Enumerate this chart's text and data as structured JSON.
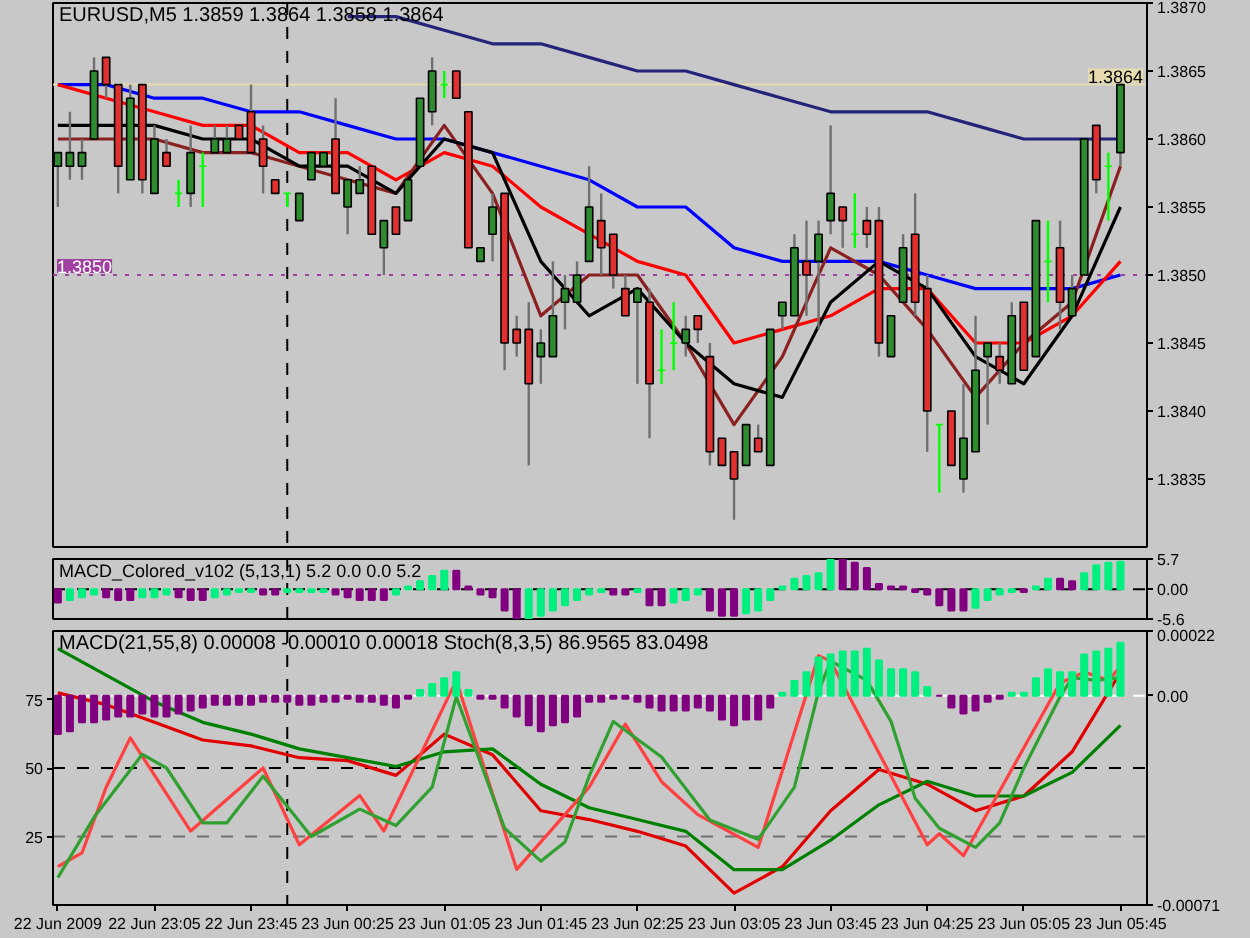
{
  "chart_data": [
    {
      "type": "candlestick",
      "title": "EURUSD,M5  1.3859 1.3864 1.3858 1.3864",
      "x": [
        "2009-06-22T22:25",
        "2009-06-22T22:30",
        "2009-06-22T22:35",
        "2009-06-22T22:40",
        "2009-06-22T22:45",
        "2009-06-22T22:50",
        "2009-06-22T22:55",
        "2009-06-22T23:00",
        "2009-06-22T23:05",
        "2009-06-22T23:10",
        "2009-06-22T23:15",
        "2009-06-22T23:20",
        "2009-06-22T23:25",
        "2009-06-22T23:30",
        "2009-06-22T23:35",
        "2009-06-22T23:40",
        "2009-06-22T23:45",
        "2009-06-22T23:50",
        "2009-06-22T23:55",
        "2009-06-23T00:00",
        "2009-06-23T00:05",
        "2009-06-23T00:10",
        "2009-06-23T00:15",
        "2009-06-23T00:20",
        "2009-06-23T00:25",
        "2009-06-23T00:30",
        "2009-06-23T00:35",
        "2009-06-23T00:40",
        "2009-06-23T00:45",
        "2009-06-23T00:50",
        "2009-06-23T00:55",
        "2009-06-23T01:00",
        "2009-06-23T01:05",
        "2009-06-23T01:10",
        "2009-06-23T01:15",
        "2009-06-23T01:20",
        "2009-06-23T01:25",
        "2009-06-23T01:30",
        "2009-06-23T01:35",
        "2009-06-23T01:40",
        "2009-06-23T01:45",
        "2009-06-23T01:50",
        "2009-06-23T01:55",
        "2009-06-23T02:00",
        "2009-06-23T02:05",
        "2009-06-23T02:10",
        "2009-06-23T02:15",
        "2009-06-23T02:20",
        "2009-06-23T02:25",
        "2009-06-23T02:30",
        "2009-06-23T02:35",
        "2009-06-23T02:40",
        "2009-06-23T02:45",
        "2009-06-23T02:50",
        "2009-06-23T02:55",
        "2009-06-23T03:00",
        "2009-06-23T03:05",
        "2009-06-23T03:10",
        "2009-06-23T03:15",
        "2009-06-23T03:20",
        "2009-06-23T03:25",
        "2009-06-23T03:30",
        "2009-06-23T03:35",
        "2009-06-23T03:40",
        "2009-06-23T03:45",
        "2009-06-23T03:50",
        "2009-06-23T03:55",
        "2009-06-23T04:00",
        "2009-06-23T04:05",
        "2009-06-23T04:10",
        "2009-06-23T04:15",
        "2009-06-23T04:20",
        "2009-06-23T04:25",
        "2009-06-23T04:30",
        "2009-06-23T04:35",
        "2009-06-23T04:40",
        "2009-06-23T04:45",
        "2009-06-23T04:50",
        "2009-06-23T04:55",
        "2009-06-23T05:00",
        "2009-06-23T05:05",
        "2009-06-23T05:10",
        "2009-06-23T05:15",
        "2009-06-23T05:20",
        "2009-06-23T05:25",
        "2009-06-23T05:30",
        "2009-06-23T05:35",
        "2009-06-23T05:40",
        "2009-06-23T05:45"
      ],
      "ohlc": [
        [
          1.3858,
          1.3859,
          1.3855,
          1.3859
        ],
        [
          1.3858,
          1.3862,
          1.3857,
          1.3859
        ],
        [
          1.3858,
          1.386,
          1.3857,
          1.3859
        ],
        [
          1.386,
          1.3866,
          1.386,
          1.3865
        ],
        [
          1.3866,
          1.3866,
          1.3863,
          1.3864
        ],
        [
          1.3864,
          1.3864,
          1.3856,
          1.3858
        ],
        [
          1.3857,
          1.3864,
          1.3857,
          1.3863
        ],
        [
          1.3864,
          1.3864,
          1.3856,
          1.3857
        ],
        [
          1.3856,
          1.3861,
          1.3856,
          1.386
        ],
        [
          1.3859,
          1.386,
          1.3858,
          1.3858
        ],
        [
          1.3856,
          1.3857,
          1.3855,
          1.3856
        ],
        [
          1.3856,
          1.3861,
          1.3855,
          1.3859
        ],
        [
          1.3858,
          1.3859,
          1.3855,
          1.3858
        ],
        [
          1.3859,
          1.3861,
          1.3859,
          1.386
        ],
        [
          1.3859,
          1.3861,
          1.3859,
          1.386
        ],
        [
          1.3861,
          1.3861,
          1.386,
          1.386
        ],
        [
          1.3862,
          1.3864,
          1.3859,
          1.3859
        ],
        [
          1.386,
          1.3861,
          1.3856,
          1.3858
        ],
        [
          1.3857,
          1.3857,
          1.3856,
          1.3856
        ],
        [
          1.3856,
          1.3856,
          1.3855,
          1.3856
        ],
        [
          1.3854,
          1.3856,
          1.3854,
          1.3856
        ],
        [
          1.3857,
          1.3859,
          1.3857,
          1.3859
        ],
        [
          1.3858,
          1.3859,
          1.3858,
          1.3859
        ],
        [
          1.386,
          1.3863,
          1.3856,
          1.3856
        ],
        [
          1.3855,
          1.3857,
          1.3853,
          1.3857
        ],
        [
          1.3856,
          1.3858,
          1.3856,
          1.3857
        ],
        [
          1.3858,
          1.3858,
          1.3853,
          1.3853
        ],
        [
          1.3852,
          1.3854,
          1.385,
          1.3854
        ],
        [
          1.3855,
          1.3855,
          1.3853,
          1.3853
        ],
        [
          1.3854,
          1.3857,
          1.3854,
          1.3857
        ],
        [
          1.3858,
          1.3863,
          1.3858,
          1.3863
        ],
        [
          1.3862,
          1.3866,
          1.3861,
          1.3865
        ],
        [
          1.3864,
          1.3865,
          1.3863,
          1.3864
        ],
        [
          1.3865,
          1.3865,
          1.3863,
          1.3863
        ],
        [
          1.3862,
          1.3862,
          1.3852,
          1.3852
        ],
        [
          1.3851,
          1.3852,
          1.3851,
          1.3852
        ],
        [
          1.3853,
          1.3856,
          1.3851,
          1.3855
        ],
        [
          1.3856,
          1.3856,
          1.3843,
          1.3845
        ],
        [
          1.3846,
          1.3847,
          1.3844,
          1.3845
        ],
        [
          1.3846,
          1.3848,
          1.3836,
          1.3842
        ],
        [
          1.3844,
          1.3846,
          1.3842,
          1.3845
        ],
        [
          1.3844,
          1.3851,
          1.3844,
          1.3847
        ],
        [
          1.3848,
          1.385,
          1.3846,
          1.3849
        ],
        [
          1.3848,
          1.3851,
          1.3848,
          1.385
        ],
        [
          1.3851,
          1.3858,
          1.3851,
          1.3855
        ],
        [
          1.3854,
          1.3856,
          1.385,
          1.3852
        ],
        [
          1.3853,
          1.3853,
          1.3849,
          1.385
        ],
        [
          1.3849,
          1.385,
          1.3847,
          1.3847
        ],
        [
          1.3848,
          1.3849,
          1.3842,
          1.3849
        ],
        [
          1.3848,
          1.3849,
          1.3838,
          1.3842
        ],
        [
          1.3843,
          1.3846,
          1.3842,
          1.3843
        ],
        [
          1.3845,
          1.3848,
          1.3843,
          1.3845
        ],
        [
          1.3845,
          1.3847,
          1.3844,
          1.3846
        ],
        [
          1.3847,
          1.3847,
          1.3845,
          1.3846
        ],
        [
          1.3844,
          1.3845,
          1.3836,
          1.3837
        ],
        [
          1.3838,
          1.3838,
          1.3836,
          1.3836
        ],
        [
          1.3837,
          1.3837,
          1.3832,
          1.3835
        ],
        [
          1.3836,
          1.3839,
          1.3836,
          1.3839
        ],
        [
          1.3838,
          1.3839,
          1.3837,
          1.3837
        ],
        [
          1.3836,
          1.3846,
          1.3836,
          1.3846
        ],
        [
          1.3847,
          1.3848,
          1.3846,
          1.3848
        ],
        [
          1.3847,
          1.3853,
          1.3847,
          1.3852
        ],
        [
          1.3851,
          1.3854,
          1.3847,
          1.385
        ],
        [
          1.3851,
          1.3854,
          1.3846,
          1.3853
        ],
        [
          1.3854,
          1.3861,
          1.3853,
          1.3856
        ],
        [
          1.3855,
          1.3855,
          1.3852,
          1.3854
        ],
        [
          1.3853,
          1.3856,
          1.3852,
          1.3853
        ],
        [
          1.3854,
          1.3855,
          1.3852,
          1.3853
        ],
        [
          1.3854,
          1.3855,
          1.3844,
          1.3845
        ],
        [
          1.3844,
          1.3847,
          1.3844,
          1.3847
        ],
        [
          1.3848,
          1.3853,
          1.3848,
          1.3852
        ],
        [
          1.3853,
          1.3856,
          1.3847,
          1.3848
        ],
        [
          1.3849,
          1.385,
          1.3837,
          1.384
        ],
        [
          1.3839,
          1.3839,
          1.3834,
          1.3839
        ],
        [
          1.384,
          1.384,
          1.3836,
          1.3836
        ],
        [
          1.3835,
          1.3842,
          1.3834,
          1.3838
        ],
        [
          1.3837,
          1.3847,
          1.3837,
          1.3843
        ],
        [
          1.3844,
          1.3845,
          1.3839,
          1.3845
        ],
        [
          1.3844,
          1.3845,
          1.3842,
          1.3843
        ],
        [
          1.3842,
          1.3848,
          1.3842,
          1.3847
        ],
        [
          1.3848,
          1.3848,
          1.3843,
          1.3843
        ],
        [
          1.3844,
          1.3854,
          1.3844,
          1.3854
        ],
        [
          1.3851,
          1.3854,
          1.3848,
          1.3851
        ],
        [
          1.3852,
          1.3854,
          1.3846,
          1.3848
        ],
        [
          1.3847,
          1.385,
          1.3847,
          1.3849
        ],
        [
          1.385,
          1.386,
          1.385,
          1.386
        ],
        [
          1.3861,
          1.3861,
          1.3856,
          1.3857
        ],
        [
          1.3858,
          1.3859,
          1.3854,
          1.3858
        ],
        [
          1.3859,
          1.3864,
          1.3858,
          1.3864
        ]
      ],
      "series": [
        {
          "type": "line",
          "color": "#23237a",
          "x": [
            "2009-06-23T00:25",
            "2009-06-23T00:45",
            "2009-06-23T01:05",
            "2009-06-23T01:25",
            "2009-06-23T01:45",
            "2009-06-23T02:05",
            "2009-06-23T02:25",
            "2009-06-23T02:45",
            "2009-06-23T03:05",
            "2009-06-23T03:25",
            "2009-06-23T03:45",
            "2009-06-23T04:05",
            "2009-06-23T04:25",
            "2009-06-23T04:45",
            "2009-06-23T05:05",
            "2009-06-23T05:25",
            "2009-06-23T05:45"
          ],
          "values": [
            1.3869,
            1.3869,
            1.3868,
            1.3867,
            1.3867,
            1.3866,
            1.3865,
            1.3865,
            1.3864,
            1.3863,
            1.3862,
            1.3862,
            1.3862,
            1.3861,
            1.386,
            1.386,
            1.386
          ]
        },
        {
          "type": "line",
          "color": "#0000ff",
          "x": [
            "2009-06-22T22:25",
            "2009-06-22T22:45",
            "2009-06-22T23:05",
            "2009-06-22T23:25",
            "2009-06-22T23:45",
            "2009-06-23T00:05",
            "2009-06-23T00:25",
            "2009-06-23T00:45",
            "2009-06-23T01:05",
            "2009-06-23T01:25",
            "2009-06-23T01:45",
            "2009-06-23T02:05",
            "2009-06-23T02:25",
            "2009-06-23T02:45",
            "2009-06-23T03:05",
            "2009-06-23T03:25",
            "2009-06-23T03:45",
            "2009-06-23T04:05",
            "2009-06-23T04:25",
            "2009-06-23T04:45",
            "2009-06-23T05:05",
            "2009-06-23T05:25",
            "2009-06-23T05:45"
          ],
          "values": [
            1.3864,
            1.3864,
            1.3863,
            1.3863,
            1.3862,
            1.3862,
            1.3861,
            1.386,
            1.386,
            1.3859,
            1.3858,
            1.3857,
            1.3855,
            1.3855,
            1.3852,
            1.3851,
            1.3851,
            1.3851,
            1.385,
            1.3849,
            1.3849,
            1.3849,
            1.385
          ]
        },
        {
          "type": "line",
          "color": "#ff0000",
          "x": [
            "2009-06-22T22:25",
            "2009-06-22T22:45",
            "2009-06-22T23:05",
            "2009-06-22T23:25",
            "2009-06-22T23:45",
            "2009-06-23T00:05",
            "2009-06-23T00:25",
            "2009-06-23T00:45",
            "2009-06-23T01:05",
            "2009-06-23T01:25",
            "2009-06-23T01:45",
            "2009-06-23T02:05",
            "2009-06-23T02:25",
            "2009-06-23T02:45",
            "2009-06-23T03:05",
            "2009-06-23T03:25",
            "2009-06-23T03:45",
            "2009-06-23T04:05",
            "2009-06-23T04:25",
            "2009-06-23T04:45",
            "2009-06-23T05:05",
            "2009-06-23T05:25",
            "2009-06-23T05:45"
          ],
          "values": [
            1.3864,
            1.3863,
            1.3862,
            1.3861,
            1.3861,
            1.3859,
            1.3859,
            1.3857,
            1.3859,
            1.3858,
            1.3855,
            1.3853,
            1.3851,
            1.385,
            1.3845,
            1.3846,
            1.3847,
            1.3849,
            1.3849,
            1.3845,
            1.3845,
            1.3847,
            1.3851
          ]
        },
        {
          "type": "line",
          "color": "#8b2020",
          "x": [
            "2009-06-22T22:25",
            "2009-06-22T22:45",
            "2009-06-22T23:05",
            "2009-06-22T23:25",
            "2009-06-22T23:45",
            "2009-06-23T00:05",
            "2009-06-23T00:25",
            "2009-06-23T00:45",
            "2009-06-23T01:05",
            "2009-06-23T01:25",
            "2009-06-23T01:45",
            "2009-06-23T02:05",
            "2009-06-23T02:25",
            "2009-06-23T02:45",
            "2009-06-23T03:05",
            "2009-06-23T03:25",
            "2009-06-23T03:45",
            "2009-06-23T04:05",
            "2009-06-23T04:25",
            "2009-06-23T04:45",
            "2009-06-23T05:05",
            "2009-06-23T05:25",
            "2009-06-23T05:45"
          ],
          "values": [
            1.386,
            1.386,
            1.386,
            1.3859,
            1.3859,
            1.3858,
            1.3857,
            1.3856,
            1.3861,
            1.3856,
            1.3847,
            1.385,
            1.385,
            1.3845,
            1.3839,
            1.3844,
            1.3852,
            1.385,
            1.3846,
            1.3841,
            1.3845,
            1.3848,
            1.3858
          ]
        },
        {
          "type": "line",
          "color": "#000000",
          "x": [
            "2009-06-22T22:25",
            "2009-06-22T22:45",
            "2009-06-22T23:05",
            "2009-06-22T23:25",
            "2009-06-22T23:45",
            "2009-06-23T00:05",
            "2009-06-23T00:25",
            "2009-06-23T00:45",
            "2009-06-23T01:05",
            "2009-06-23T01:25",
            "2009-06-23T01:45",
            "2009-06-23T02:05",
            "2009-06-23T02:25",
            "2009-06-23T02:45",
            "2009-06-23T03:05",
            "2009-06-23T03:25",
            "2009-06-23T03:45",
            "2009-06-23T04:05",
            "2009-06-23T04:25",
            "2009-06-23T04:45",
            "2009-06-23T05:05",
            "2009-06-23T05:25",
            "2009-06-23T05:45"
          ],
          "values": [
            1.3861,
            1.3861,
            1.3861,
            1.386,
            1.386,
            1.3858,
            1.3858,
            1.3856,
            1.386,
            1.3859,
            1.3851,
            1.3847,
            1.3849,
            1.3845,
            1.3842,
            1.3841,
            1.3848,
            1.3851,
            1.3849,
            1.3844,
            1.3842,
            1.3847,
            1.3855
          ]
        }
      ],
      "xlim": [
        "2009-06-22T22:23",
        "2009-06-23T05:56"
      ],
      "ylim": [
        1.383,
        1.387
      ],
      "yticks": [
        1.3835,
        {
          "value": 1.384,
          "label": "1.3840"
        },
        1.3845,
        {
          "value": 1.385,
          "label": "1.3850"
        },
        1.3855,
        {
          "value": 1.386,
          "label": "1.3860"
        },
        1.3865,
        {
          "value": 1.387,
          "label": "1.3870"
        }
      ],
      "ref_lines": [
        {
          "axis": "y",
          "value": 1.3864,
          "label": "1.3864",
          "color": "#e6dcb0"
        },
        {
          "axis": "y",
          "value": 1.385,
          "label": "1.3850",
          "color": "#a040a0",
          "line_style": "dotted"
        },
        {
          "axis": "x",
          "value": "2009-06-23T00:00",
          "color": "#000000",
          "line_style": "dashed"
        }
      ],
      "tick_labels": "y"
    },
    {
      "type": "bar",
      "title": "MACD_Colored_v102 (5,13,1) 5.2 0.0 0.0 5.2",
      "x": [
        "2009-06-22T22:25",
        "2009-06-22T22:30",
        "2009-06-22T22:35",
        "2009-06-22T22:40",
        "2009-06-22T22:45",
        "2009-06-22T22:50",
        "2009-06-22T22:55",
        "2009-06-22T23:00",
        "2009-06-22T23:05",
        "2009-06-22T23:10",
        "2009-06-22T23:15",
        "2009-06-22T23:20",
        "2009-06-22T23:25",
        "2009-06-22T23:30",
        "2009-06-22T23:35",
        "2009-06-22T23:40",
        "2009-06-22T23:45",
        "2009-06-22T23:50",
        "2009-06-22T23:55",
        "2009-06-23T00:00",
        "2009-06-23T00:05",
        "2009-06-23T00:10",
        "2009-06-23T00:15",
        "2009-06-23T00:20",
        "2009-06-23T00:25",
        "2009-06-23T00:30",
        "2009-06-23T00:35",
        "2009-06-23T00:40",
        "2009-06-23T00:45",
        "2009-06-23T00:50",
        "2009-06-23T00:55",
        "2009-06-23T01:00",
        "2009-06-23T01:05",
        "2009-06-23T01:10",
        "2009-06-23T01:15",
        "2009-06-23T01:20",
        "2009-06-23T01:25",
        "2009-06-23T01:30",
        "2009-06-23T01:35",
        "2009-06-23T01:40",
        "2009-06-23T01:45",
        "2009-06-23T01:50",
        "2009-06-23T01:55",
        "2009-06-23T02:00",
        "2009-06-23T02:05",
        "2009-06-23T02:10",
        "2009-06-23T02:15",
        "2009-06-23T02:20",
        "2009-06-23T02:25",
        "2009-06-23T02:30",
        "2009-06-23T02:35",
        "2009-06-23T02:40",
        "2009-06-23T02:45",
        "2009-06-23T02:50",
        "2009-06-23T02:55",
        "2009-06-23T03:00",
        "2009-06-23T03:05",
        "2009-06-23T03:10",
        "2009-06-23T03:15",
        "2009-06-23T03:20",
        "2009-06-23T03:25",
        "2009-06-23T03:30",
        "2009-06-23T03:35",
        "2009-06-23T03:40",
        "2009-06-23T03:45",
        "2009-06-23T03:50",
        "2009-06-23T03:55",
        "2009-06-23T04:00",
        "2009-06-23T04:05",
        "2009-06-23T04:10",
        "2009-06-23T04:15",
        "2009-06-23T04:20",
        "2009-06-23T04:25",
        "2009-06-23T04:30",
        "2009-06-23T04:35",
        "2009-06-23T04:40",
        "2009-06-23T04:45",
        "2009-06-23T04:50",
        "2009-06-23T04:55",
        "2009-06-23T05:00",
        "2009-06-23T05:05",
        "2009-06-23T05:10",
        "2009-06-23T05:15",
        "2009-06-23T05:20",
        "2009-06-23T05:25",
        "2009-06-23T05:30",
        "2009-06-23T05:35",
        "2009-06-23T05:40",
        "2009-06-23T05:45"
      ],
      "values": [
        -2.5,
        -2,
        -1.5,
        -1,
        -1.5,
        -2,
        -2,
        -1.5,
        -1.5,
        -1,
        -1.5,
        -2,
        -2,
        -1.5,
        -1,
        -0.5,
        -0.5,
        -1,
        -1,
        -0.5,
        -0.5,
        -0.5,
        -0.5,
        -1,
        -1.5,
        -2,
        -2,
        -2,
        -1,
        0.5,
        1.5,
        2.5,
        3.5,
        3.5,
        0.5,
        -1,
        -1.5,
        -4,
        -5.6,
        -5.6,
        -5,
        -4,
        -3,
        -2,
        -1,
        -0.5,
        -1,
        -1,
        -0.5,
        -3,
        -3,
        -2.5,
        -2,
        -1,
        -4,
        -5,
        -5,
        -4.5,
        -4,
        -2,
        0.5,
        2,
        2.5,
        3,
        5.6,
        5.6,
        5,
        4,
        1,
        0.5,
        0.5,
        -0.5,
        -1,
        -3,
        -4,
        -4,
        -3.5,
        -2,
        -1,
        -0.5,
        -0.5,
        0.5,
        2,
        2,
        1.5,
        3,
        4.5,
        5,
        5.2
      ],
      "colors": [
        "#800080",
        "#00f080",
        "#00f080",
        "#00f080",
        "#800080",
        "#800080",
        "#800080",
        "#00f080",
        "#00f080",
        "#00f080",
        "#800080",
        "#800080",
        "#800080",
        "#00f080",
        "#00f080",
        "#00f080",
        "#00f080",
        "#800080",
        "#800080",
        "#00f080",
        "#00f080",
        "#00f080",
        "#00f080",
        "#800080",
        "#800080",
        "#800080",
        "#800080",
        "#800080",
        "#00f080",
        "#00f080",
        "#00f080",
        "#00f080",
        "#00f080",
        "#800080",
        "#800080",
        "#800080",
        "#800080",
        "#800080",
        "#800080",
        "#00f080",
        "#00f080",
        "#00f080",
        "#00f080",
        "#00f080",
        "#00f080",
        "#00f080",
        "#800080",
        "#800080",
        "#00f080",
        "#800080",
        "#800080",
        "#00f080",
        "#00f080",
        "#00f080",
        "#800080",
        "#800080",
        "#800080",
        "#00f080",
        "#00f080",
        "#00f080",
        "#00f080",
        "#00f080",
        "#00f080",
        "#00f080",
        "#00f080",
        "#800080",
        "#800080",
        "#800080",
        "#800080",
        "#800080",
        "#800080",
        "#800080",
        "#800080",
        "#800080",
        "#800080",
        "#800080",
        "#00f080",
        "#00f080",
        "#00f080",
        "#00f080",
        "#800080",
        "#00f080",
        "#00f080",
        "#800080",
        "#800080",
        "#00f080",
        "#00f080",
        "#00f080",
        "#00f080"
      ],
      "xlim": [
        "2009-06-22T22:23",
        "2009-06-23T05:56"
      ],
      "ylim": [
        -5.6,
        5.7
      ],
      "yticks": [
        -5.6,
        {
          "value": 0,
          "label": "0.00"
        },
        5.7
      ],
      "ref_lines": [
        {
          "axis": "y",
          "value": 0,
          "color": "#000000",
          "line_style": "dashed"
        },
        {
          "axis": "x",
          "value": "2009-06-23T00:00",
          "color": "#000000",
          "line_style": "dashed"
        }
      ],
      "tick_labels": "y"
    },
    {
      "type": "bar",
      "title": "MACD(21,55,8) 0.00008 -0.00010 0.00018  Stoch(8,3,5) 86.9565 83.0498",
      "x": [
        "2009-06-22T22:25",
        "2009-06-22T22:30",
        "2009-06-22T22:35",
        "2009-06-22T22:40",
        "2009-06-22T22:45",
        "2009-06-22T22:50",
        "2009-06-22T22:55",
        "2009-06-22T23:00",
        "2009-06-22T23:05",
        "2009-06-22T23:10",
        "2009-06-22T23:15",
        "2009-06-22T23:20",
        "2009-06-22T23:25",
        "2009-06-22T23:30",
        "2009-06-22T23:35",
        "2009-06-22T23:40",
        "2009-06-22T23:45",
        "2009-06-22T23:50",
        "2009-06-22T23:55",
        "2009-06-23T00:00",
        "2009-06-23T00:05",
        "2009-06-23T00:10",
        "2009-06-23T00:15",
        "2009-06-23T00:20",
        "2009-06-23T00:25",
        "2009-06-23T00:30",
        "2009-06-23T00:35",
        "2009-06-23T00:40",
        "2009-06-23T00:45",
        "2009-06-23T00:50",
        "2009-06-23T00:55",
        "2009-06-23T01:00",
        "2009-06-23T01:05",
        "2009-06-23T01:10",
        "2009-06-23T01:15",
        "2009-06-23T01:20",
        "2009-06-23T01:25",
        "2009-06-23T01:30",
        "2009-06-23T01:35",
        "2009-06-23T01:40",
        "2009-06-23T01:45",
        "2009-06-23T01:50",
        "2009-06-23T01:55",
        "2009-06-23T02:00",
        "2009-06-23T02:05",
        "2009-06-23T02:10",
        "2009-06-23T02:15",
        "2009-06-23T02:20",
        "2009-06-23T02:25",
        "2009-06-23T02:30",
        "2009-06-23T02:35",
        "2009-06-23T02:40",
        "2009-06-23T02:45",
        "2009-06-23T02:50",
        "2009-06-23T02:55",
        "2009-06-23T03:00",
        "2009-06-23T03:05",
        "2009-06-23T03:10",
        "2009-06-23T03:15",
        "2009-06-23T03:20",
        "2009-06-23T03:25",
        "2009-06-23T03:30",
        "2009-06-23T03:35",
        "2009-06-23T03:40",
        "2009-06-23T03:45",
        "2009-06-23T03:50",
        "2009-06-23T03:55",
        "2009-06-23T04:00",
        "2009-06-23T04:05",
        "2009-06-23T04:10",
        "2009-06-23T04:15",
        "2009-06-23T04:20",
        "2009-06-23T04:25",
        "2009-06-23T04:30",
        "2009-06-23T04:35",
        "2009-06-23T04:40",
        "2009-06-23T04:45",
        "2009-06-23T04:50",
        "2009-06-23T04:55",
        "2009-06-23T05:00",
        "2009-06-23T05:05",
        "2009-06-23T05:10",
        "2009-06-23T05:15",
        "2009-06-23T05:20",
        "2009-06-23T05:25",
        "2009-06-23T05:30",
        "2009-06-23T05:35",
        "2009-06-23T05:40",
        "2009-06-23T05:45"
      ],
      "values": [
        -0.00013,
        -0.00012,
        -9e-05,
        -9e-05,
        -8e-05,
        -7e-05,
        -7e-05,
        -6e-05,
        -7e-05,
        -7e-05,
        -6e-05,
        -5e-05,
        -4e-05,
        -3e-05,
        -3e-05,
        -3e-05,
        -3e-05,
        -2e-05,
        -2e-05,
        -2e-05,
        -3e-05,
        -3e-05,
        -2e-05,
        -2e-05,
        -1e-05,
        -2e-05,
        -2e-05,
        -3e-05,
        -4e-05,
        -1e-05,
        2e-05,
        4e-05,
        6e-05,
        8e-05,
        2e-05,
        -1e-05,
        -1e-05,
        -4e-05,
        -7e-05,
        -0.0001,
        -0.00012,
        -0.0001,
        -9e-05,
        -7e-05,
        -2e-05,
        -2e-05,
        -1e-05,
        -1e-05,
        -2e-05,
        -4e-05,
        -5e-05,
        -5e-05,
        -5e-05,
        -4e-05,
        -5e-05,
        -8e-05,
        -0.0001,
        -8e-05,
        -8e-05,
        -4e-05,
        1e-05,
        5e-05,
        8e-05,
        0.00013,
        0.00014,
        0.00015,
        0.00015,
        0.00016,
        0.00012,
        9e-05,
        9e-05,
        8e-05,
        3e-05,
        0,
        -4e-05,
        -6e-05,
        -5e-05,
        -2e-05,
        -1e-05,
        1e-05,
        1e-05,
        6e-05,
        9e-05,
        8e-05,
        8e-05,
        0.00014,
        0.00015,
        0.00016,
        0.00018
      ],
      "colors": [
        "#800080",
        "#800080",
        "#800080",
        "#800080",
        "#800080",
        "#800080",
        "#800080",
        "#800080",
        "#800080",
        "#800080",
        "#800080",
        "#800080",
        "#800080",
        "#800080",
        "#800080",
        "#800080",
        "#800080",
        "#800080",
        "#800080",
        "#800080",
        "#800080",
        "#800080",
        "#800080",
        "#800080",
        "#800080",
        "#800080",
        "#800080",
        "#800080",
        "#800080",
        "#800080",
        "#00f080",
        "#00f080",
        "#00f080",
        "#00f080",
        "#00f080",
        "#800080",
        "#800080",
        "#800080",
        "#800080",
        "#800080",
        "#800080",
        "#800080",
        "#800080",
        "#800080",
        "#800080",
        "#800080",
        "#800080",
        "#800080",
        "#800080",
        "#800080",
        "#800080",
        "#800080",
        "#800080",
        "#800080",
        "#800080",
        "#800080",
        "#800080",
        "#800080",
        "#800080",
        "#800080",
        "#00f080",
        "#00f080",
        "#00f080",
        "#00f080",
        "#00f080",
        "#00f080",
        "#00f080",
        "#00f080",
        "#00f080",
        "#00f080",
        "#00f080",
        "#00f080",
        "#00f080",
        "#800080",
        "#800080",
        "#800080",
        "#800080",
        "#800080",
        "#800080",
        "#00f080",
        "#00f080",
        "#00f080",
        "#00f080",
        "#00f080",
        "#00f080",
        "#00f080",
        "#00f080",
        "#00f080",
        "#00f080"
      ],
      "series": [
        {
          "type": "line",
          "color": "#e00000",
          "x": [
            "2009-06-22T22:25",
            "2009-06-22T22:45",
            "2009-06-22T23:05",
            "2009-06-22T23:25",
            "2009-06-22T23:45",
            "2009-06-23T00:05",
            "2009-06-23T00:25",
            "2009-06-23T00:45",
            "2009-06-23T01:05",
            "2009-06-23T01:25",
            "2009-06-23T01:45",
            "2009-06-23T02:05",
            "2009-06-23T02:25",
            "2009-06-23T02:45",
            "2009-06-23T03:05",
            "2009-06-23T03:25",
            "2009-06-23T03:45",
            "2009-06-23T04:05",
            "2009-06-23T04:25",
            "2009-06-23T04:45",
            "2009-06-23T05:05",
            "2009-06-23T05:25",
            "2009-06-23T05:45"
          ],
          "values": [
            1e-05,
            -3e-05,
            -9e-05,
            -0.00015,
            -0.00017,
            -0.00021,
            -0.00022,
            -0.00027,
            -0.00013,
            -0.0002,
            -0.00039,
            -0.00042,
            -0.00046,
            -0.00051,
            -0.00067,
            -0.00058,
            -0.00039,
            -0.00025,
            -0.0003,
            -0.00039,
            -0.00034,
            -0.00019,
            8e-05
          ]
        },
        {
          "type": "line",
          "color": "#008000",
          "x": [
            "2009-06-22T22:25",
            "2009-06-22T22:45",
            "2009-06-22T23:05",
            "2009-06-22T23:25",
            "2009-06-22T23:45",
            "2009-06-23T00:05",
            "2009-06-23T00:25",
            "2009-06-23T00:45",
            "2009-06-23T01:05",
            "2009-06-23T01:25",
            "2009-06-23T01:45",
            "2009-06-23T02:05",
            "2009-06-23T02:25",
            "2009-06-23T02:45",
            "2009-06-23T03:05",
            "2009-06-23T03:25",
            "2009-06-23T03:45",
            "2009-06-23T04:05",
            "2009-06-23T04:25",
            "2009-06-23T04:45",
            "2009-06-23T05:05",
            "2009-06-23T05:25",
            "2009-06-23T05:45"
          ],
          "values": [
            0.00016,
            7e-05,
            -2e-05,
            -9e-05,
            -0.00013,
            -0.00018,
            -0.00021,
            -0.00024,
            -0.00019,
            -0.00018,
            -0.0003,
            -0.00038,
            -0.00042,
            -0.00046,
            -0.00059,
            -0.00059,
            -0.00049,
            -0.00037,
            -0.00029,
            -0.00034,
            -0.00034,
            -0.00026,
            -0.0001
          ]
        },
        {
          "type": "line",
          "axis": "y2",
          "color": "#ff4040",
          "x": [
            "2009-06-22T22:25",
            "2009-06-22T22:35",
            "2009-06-22T22:45",
            "2009-06-22T22:55",
            "2009-06-22T23:20",
            "2009-06-22T23:50",
            "2009-06-23T00:05",
            "2009-06-23T00:30",
            "2009-06-23T00:40",
            "2009-06-23T01:10",
            "2009-06-23T01:35",
            "2009-06-23T02:05",
            "2009-06-23T02:20",
            "2009-06-23T02:35",
            "2009-06-23T02:50",
            "2009-06-23T03:15",
            "2009-06-23T03:40",
            "2009-06-23T03:45",
            "2009-06-23T04:25",
            "2009-06-23T04:30",
            "2009-06-23T04:40",
            "2009-06-23T05:20",
            "2009-06-23T05:30",
            "2009-06-23T05:40",
            "2009-06-23T05:45"
          ],
          "values": [
            14,
            19,
            43,
            61,
            27,
            50,
            22,
            40,
            27,
            82,
            13,
            43,
            66,
            45,
            33,
            21,
            91,
            89,
            22,
            26,
            18,
            81,
            85,
            82,
            87
          ]
        },
        {
          "type": "line",
          "axis": "y2",
          "color": "#30a030",
          "x": [
            "2009-06-22T22:25",
            "2009-06-22T22:40",
            "2009-06-22T23:00",
            "2009-06-22T23:10",
            "2009-06-22T23:25",
            "2009-06-22T23:35",
            "2009-06-22T23:50",
            "2009-06-23T00:10",
            "2009-06-23T00:30",
            "2009-06-23T00:45",
            "2009-06-23T01:00",
            "2009-06-23T01:10",
            "2009-06-23T01:30",
            "2009-06-23T01:45",
            "2009-06-23T01:55",
            "2009-06-23T02:05",
            "2009-06-23T02:15",
            "2009-06-23T02:35",
            "2009-06-23T02:55",
            "2009-06-23T03:15",
            "2009-06-23T03:30",
            "2009-06-23T03:40",
            "2009-06-23T03:45",
            "2009-06-23T04:00",
            "2009-06-23T04:10",
            "2009-06-23T04:20",
            "2009-06-23T04:30",
            "2009-06-23T04:45",
            "2009-06-23T04:55",
            "2009-06-23T05:05",
            "2009-06-23T05:20",
            "2009-06-23T05:25",
            "2009-06-23T05:35",
            "2009-06-23T05:45"
          ],
          "values": [
            10,
            32,
            55,
            50,
            30,
            30,
            47,
            25,
            35,
            29,
            43,
            76,
            28,
            16,
            23,
            47,
            67,
            54,
            31,
            24,
            43,
            78,
            89,
            82,
            67,
            39,
            28,
            21,
            30,
            50,
            76,
            83,
            82,
            83
          ]
        }
      ],
      "xlim": [
        "2009-06-22T22:23",
        "2009-06-23T05:56"
      ],
      "xticks": [
        {
          "value": "2009-06-22T22:25",
          "label": "22 Jun 2009"
        },
        {
          "value": "2009-06-22T23:05",
          "label": "22 Jun 23:05"
        },
        {
          "value": "2009-06-22T23:45",
          "label": "22 Jun 23:45"
        },
        {
          "value": "2009-06-23T00:25",
          "label": "23 Jun 00:25"
        },
        {
          "value": "2009-06-23T01:05",
          "label": "23 Jun 01:05"
        },
        {
          "value": "2009-06-23T01:45",
          "label": "23 Jun 01:45"
        },
        {
          "value": "2009-06-23T02:25",
          "label": "23 Jun 02:25"
        },
        {
          "value": "2009-06-23T03:05",
          "label": "23 Jun 03:05"
        },
        {
          "value": "2009-06-23T03:45",
          "label": "23 Jun 03:45"
        },
        {
          "value": "2009-06-23T04:25",
          "label": "23 Jun 04:25"
        },
        {
          "value": "2009-06-23T05:05",
          "label": "23 Jun 05:05"
        },
        {
          "value": "2009-06-23T05:45",
          "label": "23 Jun 05:45"
        }
      ],
      "ylim": [
        -0.00071,
        0.00022
      ],
      "yticks": [
        -0.00071,
        {
          "value": 0,
          "label": "0.00"
        },
        0.00022
      ],
      "y2lim": [
        0,
        100
      ],
      "y2ticks": [
        25,
        50,
        75
      ],
      "ref_lines": [
        {
          "axis": "y",
          "value": 0,
          "color": "#ffffff",
          "line_style": "dashed"
        },
        {
          "axis": "y2",
          "value": 50,
          "color": "#000000",
          "line_style": "dashed"
        },
        {
          "axis": "y2",
          "value": 25,
          "color": "#707070",
          "line_style": "dashed"
        },
        {
          "axis": "x",
          "value": "2009-06-23T00:00",
          "color": "#000000",
          "line_style": "dashed"
        }
      ]
    }
  ]
}
